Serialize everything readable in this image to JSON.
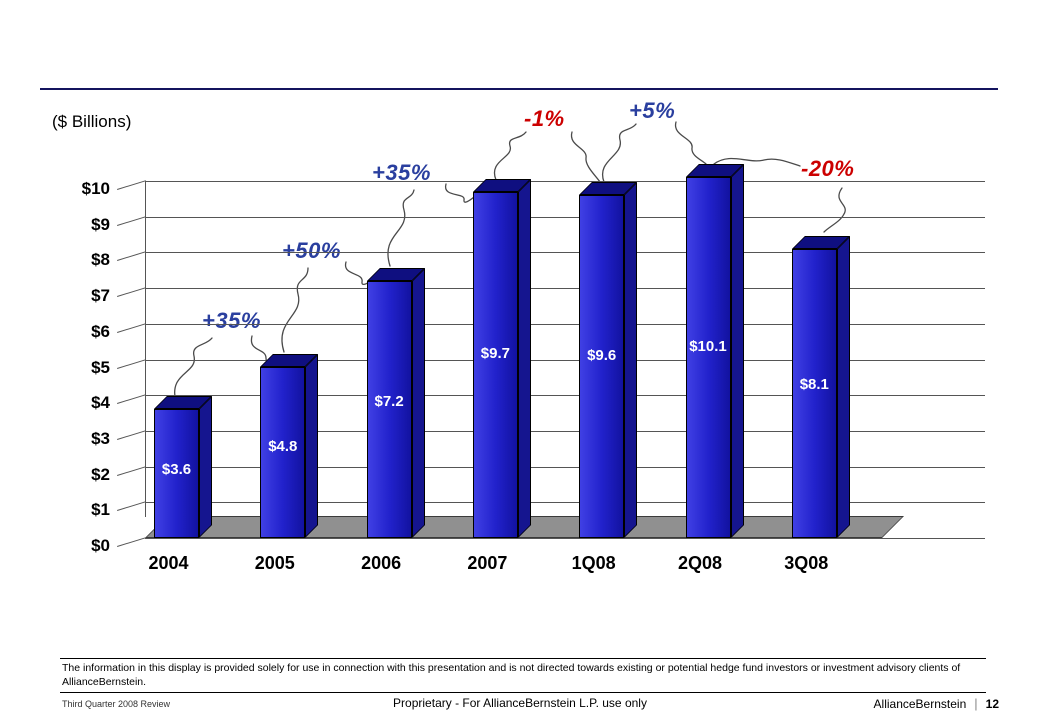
{
  "slide": {
    "footer": {
      "disclaimer": "The information in this display is provided solely for use in connection with this presentation and is not directed towards existing or potential hedge fund investors or investment advisory clients of AllianceBernstein.",
      "review_label": "Third Quarter 2008 Review",
      "proprietary_label": "Proprietary - For AllianceBernstein L.P. use only",
      "brand": "AllianceBernstein",
      "page_number": "12"
    }
  },
  "chart_data": {
    "type": "bar",
    "title": "",
    "unit_label": "($ Billions)",
    "categories": [
      "2004",
      "2005",
      "2006",
      "2007",
      "1Q08",
      "2Q08",
      "3Q08"
    ],
    "values": [
      3.6,
      4.8,
      7.2,
      9.7,
      9.6,
      10.1,
      8.1
    ],
    "bar_labels": [
      "$3.6",
      "$4.8",
      "$7.2",
      "$9.7",
      "$9.6",
      "$10.1",
      "$8.1"
    ],
    "ytick_labels": [
      "$0",
      "$1",
      "$2",
      "$3",
      "$4",
      "$5",
      "$6",
      "$7",
      "$8",
      "$9",
      "$10"
    ],
    "ylim": [
      0,
      10
    ],
    "grid": true,
    "legend": false,
    "bar_color": "#2222cc",
    "bar_top_color": "#0f0f80",
    "bar_side_color": "#15158f",
    "floor_color": "#909090",
    "annotations": [
      {
        "label": "+35%",
        "color": "#2a3f9f",
        "from": "2004",
        "to": "2005"
      },
      {
        "label": "+50%",
        "color": "#2a3f9f",
        "from": "2005",
        "to": "2006"
      },
      {
        "label": "+35%",
        "color": "#2a3f9f",
        "from": "2006",
        "to": "2007"
      },
      {
        "label": "-1%",
        "color": "#cc0000",
        "from": "2007",
        "to": "1Q08"
      },
      {
        "label": "+5%",
        "color": "#2a3f9f",
        "from": "1Q08",
        "to": "2Q08"
      },
      {
        "label": "-20%",
        "color": "#cc0000",
        "from": "2Q08",
        "to": "3Q08"
      }
    ]
  }
}
